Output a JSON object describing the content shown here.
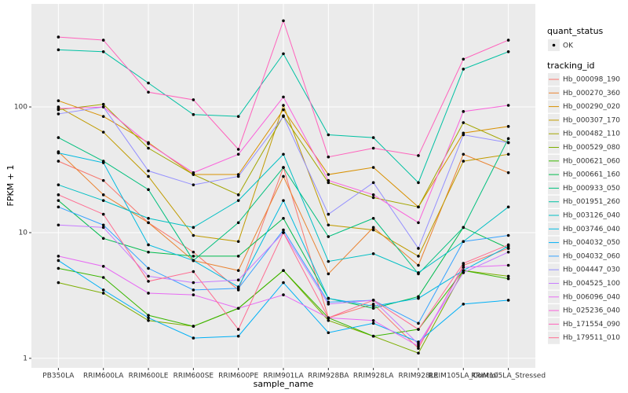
{
  "chart_data": {
    "type": "line",
    "log_y": true,
    "grid": true,
    "x_label": "sample_name",
    "y_label": "FPKM + 1",
    "categories": [
      "PB350LA",
      "RRIM600LA",
      "RRIM600LE",
      "RRIM600SE",
      "RRIM600PE",
      "RRIM901LA",
      "RRIM928BA",
      "RRIM928LA",
      "RRIM928LE",
      "RRIM105LA_Control",
      "RRIM105LA_Stressed"
    ],
    "ylim": [
      0.84,
      660
    ],
    "yticks": [
      1,
      10,
      100
    ],
    "legend_status_title": "quant_status",
    "legend_status_entry": "OK",
    "legend_title": "tracking_id",
    "point_color": "#000000",
    "series": [
      {
        "name": "Hb_000098_190",
        "color": "#F8766D",
        "values": [
          37,
          26,
          12,
          7,
          3.5,
          33,
          2.1,
          2.7,
          1.2,
          5.5,
          7.5
        ]
      },
      {
        "name": "Hb_000270_360",
        "color": "#EA8331",
        "values": [
          44,
          20,
          12,
          6,
          5,
          28,
          4.7,
          11,
          5.5,
          42,
          30
        ]
      },
      {
        "name": "Hb_000290_020",
        "color": "#D89000",
        "values": [
          112,
          84,
          52,
          29,
          29,
          95,
          29,
          33,
          16,
          62,
          70
        ]
      },
      {
        "name": "Hb_000307_170",
        "color": "#C09B00",
        "values": [
          100,
          63,
          28,
          9.5,
          8.5,
          103,
          11.5,
          10.5,
          6.5,
          37,
          42
        ]
      },
      {
        "name": "Hb_000482_110",
        "color": "#A3A500",
        "values": [
          95,
          105,
          47,
          29,
          20,
          85,
          25,
          19,
          16,
          75,
          52
        ]
      },
      {
        "name": "Hb_000529_080",
        "color": "#7CAE00",
        "values": [
          4,
          3.3,
          2,
          1.8,
          2.5,
          5,
          2,
          1.5,
          1.1,
          5,
          4.5
        ]
      },
      {
        "name": "Hb_000621_060",
        "color": "#39B600",
        "values": [
          5.2,
          4.4,
          2.2,
          1.8,
          2.5,
          5,
          2.1,
          1.5,
          1.7,
          5,
          4.3
        ]
      },
      {
        "name": "Hb_000661_160",
        "color": "#00BB4E",
        "values": [
          18,
          9,
          7,
          6.5,
          6.5,
          13,
          3,
          2.5,
          3.1,
          11,
          7.5
        ]
      },
      {
        "name": "Hb_000933_050",
        "color": "#00BF7D",
        "values": [
          57,
          37,
          22,
          6,
          12,
          33,
          9.3,
          13,
          4.7,
          11,
          56
        ]
      },
      {
        "name": "Hb_001951_260",
        "color": "#00C1A3",
        "values": [
          285,
          275,
          155,
          87,
          84,
          265,
          60,
          57,
          25,
          200,
          275
        ]
      },
      {
        "name": "Hb_003126_040",
        "color": "#00BFC4",
        "values": [
          24,
          18,
          13,
          11,
          18,
          42,
          5.9,
          6.8,
          4.8,
          8.5,
          16
        ]
      },
      {
        "name": "Hb_003746_040",
        "color": "#00BAE0",
        "values": [
          43,
          36,
          8,
          6,
          3.7,
          18,
          3,
          2.6,
          3,
          5,
          7.8
        ]
      },
      {
        "name": "Hb_004032_050",
        "color": "#00B0F6",
        "values": [
          6,
          3.5,
          2.1,
          1.45,
          1.5,
          4,
          1.6,
          1.9,
          1.35,
          2.7,
          2.9
        ]
      },
      {
        "name": "Hb_004032_060",
        "color": "#35A2FF",
        "values": [
          16,
          11.5,
          5.2,
          3.5,
          3.6,
          10.5,
          2.8,
          2.9,
          1.9,
          8.5,
          9.5
        ]
      },
      {
        "name": "Hb_004447_030",
        "color": "#9590FF",
        "values": [
          88,
          100,
          31,
          24,
          28,
          84,
          14,
          25,
          7.5,
          60,
          52
        ]
      },
      {
        "name": "Hb_004525_100",
        "color": "#C77CFF",
        "values": [
          11.5,
          11,
          4.5,
          4,
          4.2,
          10,
          2.7,
          2.9,
          1.3,
          4.8,
          7
        ]
      },
      {
        "name": "Hb_006096_040",
        "color": "#E76BF3",
        "values": [
          6.5,
          5.4,
          3.3,
          3.2,
          2.5,
          3.2,
          2.1,
          2,
          1.25,
          5.3,
          5.5
        ]
      },
      {
        "name": "Hb_025236_040",
        "color": "#FA62DB",
        "values": [
          97,
          100,
          51,
          30,
          42,
          120,
          26,
          20,
          12,
          92,
          103
        ]
      },
      {
        "name": "Hb_171554_090",
        "color": "#FF62BC",
        "values": [
          360,
          340,
          131,
          114,
          46,
          485,
          40,
          47,
          41,
          240,
          340
        ]
      },
      {
        "name": "Hb_179511_010",
        "color": "#FF6C91",
        "values": [
          20,
          14,
          4.1,
          4.9,
          1.7,
          10,
          2.1,
          2.9,
          1.7,
          5.7,
          8
        ]
      }
    ]
  }
}
